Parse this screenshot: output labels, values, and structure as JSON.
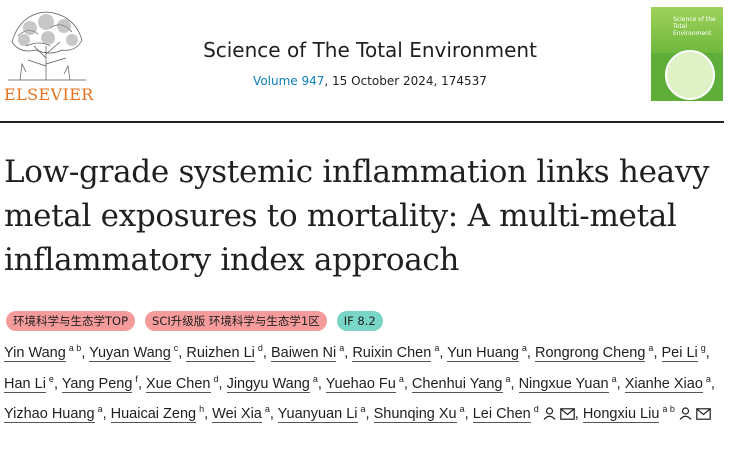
{
  "header": {
    "publisher_logo_text": "ELSEVIER",
    "journal_title": "Science of The Total Environment",
    "volume_link": "Volume 947",
    "citation_rest": ", 15 October 2024, 174537",
    "cover_journal_name": "Science of the Total Environment"
  },
  "article": {
    "title": "Low-grade systemic inflammation links heavy metal exposures to mortality: A multi-metal inflammatory index approach"
  },
  "badges": [
    {
      "label": "环境科学与生态学TOP",
      "color": "#f59b9b"
    },
    {
      "label": "SCI升级版 环境科学与生态学1区",
      "color": "#f59b9b"
    },
    {
      "label": "IF 8.2",
      "color": "#79d6c6"
    }
  ],
  "authors": [
    {
      "name": "Yin Wang",
      "aff": "a b"
    },
    {
      "name": "Yuyan Wang",
      "aff": "c"
    },
    {
      "name": "Ruizhen Li",
      "aff": "d"
    },
    {
      "name": "Baiwen Ni",
      "aff": "a"
    },
    {
      "name": "Ruixin Chen",
      "aff": "a"
    },
    {
      "name": "Yun Huang",
      "aff": "a"
    },
    {
      "name": "Rongrong Cheng",
      "aff": "a"
    },
    {
      "name": "Pei Li",
      "aff": "g"
    },
    {
      "name": "Han Li",
      "aff": "e"
    },
    {
      "name": "Yang Peng",
      "aff": "f"
    },
    {
      "name": "Xue Chen",
      "aff": "d"
    },
    {
      "name": "Jingyu Wang",
      "aff": "a"
    },
    {
      "name": "Yuehao Fu",
      "aff": "a"
    },
    {
      "name": "Chenhui Yang",
      "aff": "a"
    },
    {
      "name": "Ningxue Yuan",
      "aff": "a"
    },
    {
      "name": "Xianhe Xiao",
      "aff": "a"
    },
    {
      "name": "Yizhao Huang",
      "aff": "a"
    },
    {
      "name": "Huaicai Zeng",
      "aff": "h"
    },
    {
      "name": "Wei Xia",
      "aff": "a"
    },
    {
      "name": "Yuanyuan Li",
      "aff": "a"
    },
    {
      "name": "Shunqing Xu",
      "aff": "a"
    },
    {
      "name": "Lei Chen",
      "aff": "d",
      "corresponding": true
    },
    {
      "name": "Hongxiu Liu",
      "aff": "a b",
      "corresponding": true
    }
  ],
  "icons": {
    "person": "person-icon",
    "email": "email-icon"
  }
}
